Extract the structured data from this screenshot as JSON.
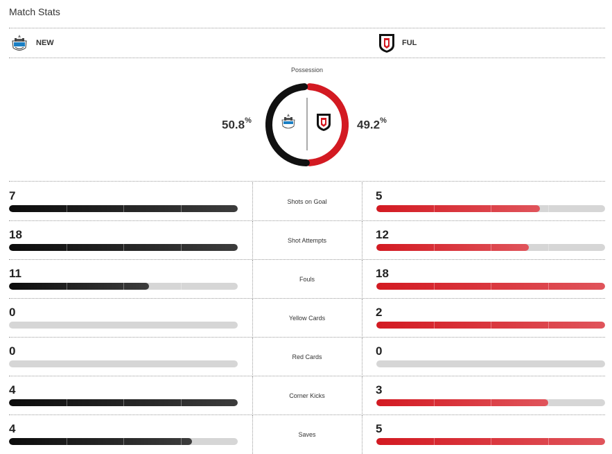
{
  "title": "Match Stats",
  "home": {
    "abbr": "NEW",
    "crest": "newcastle-crest-icon",
    "color": "#111111"
  },
  "away": {
    "abbr": "FUL",
    "crest": "fulham-crest-icon",
    "color": "#d31a22"
  },
  "possession": {
    "label": "Possession",
    "home": "50.8",
    "away": "49.2",
    "unit": "%"
  },
  "stats": [
    {
      "label": "Shots on Goal",
      "home": "7",
      "away": "5",
      "home_fill": 1.0,
      "away_fill": 0.714
    },
    {
      "label": "Shot Attempts",
      "home": "18",
      "away": "12",
      "home_fill": 1.0,
      "away_fill": 0.667
    },
    {
      "label": "Fouls",
      "home": "11",
      "away": "18",
      "home_fill": 0.611,
      "away_fill": 1.0
    },
    {
      "label": "Yellow Cards",
      "home": "0",
      "away": "2",
      "home_fill": 0.0,
      "away_fill": 1.0
    },
    {
      "label": "Red Cards",
      "home": "0",
      "away": "0",
      "home_fill": 0.0,
      "away_fill": 0.0
    },
    {
      "label": "Corner Kicks",
      "home": "4",
      "away": "3",
      "home_fill": 1.0,
      "away_fill": 0.75
    },
    {
      "label": "Saves",
      "home": "4",
      "away": "5",
      "home_fill": 0.8,
      "away_fill": 1.0
    }
  ]
}
